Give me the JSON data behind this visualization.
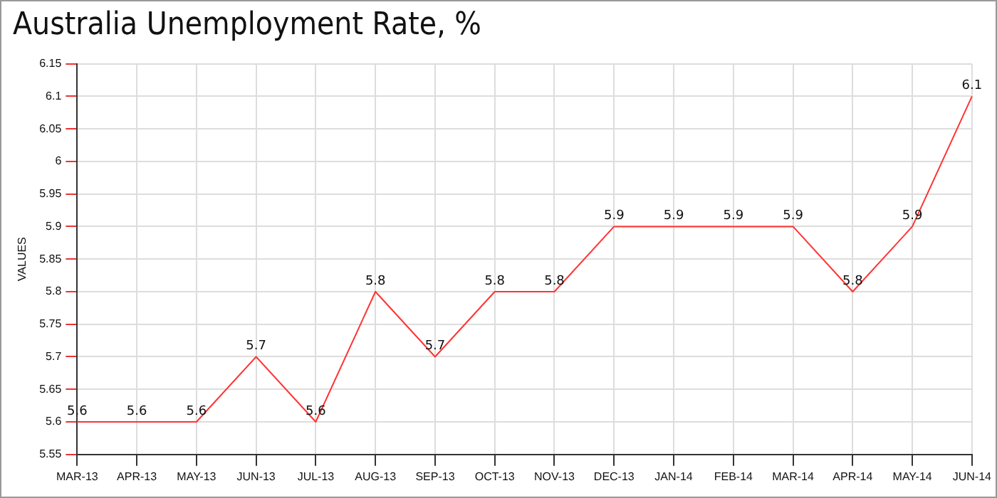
{
  "chart_data": {
    "type": "line",
    "title": "Australia Unemployment Rate, %",
    "ylabel": "VALUES",
    "categories": [
      "MAR-13",
      "APR-13",
      "MAY-13",
      "JUN-13",
      "JUL-13",
      "AUG-13",
      "SEP-13",
      "OCT-13",
      "NOV-13",
      "DEC-13",
      "JAN-14",
      "FEB-14",
      "MAR-14",
      "APR-14",
      "MAY-14",
      "JUN-14"
    ],
    "series": [
      {
        "color": "#ff3333",
        "values": [
          5.6,
          5.6,
          5.6,
          5.7,
          5.6,
          5.8,
          5.7,
          5.8,
          5.8,
          5.9,
          5.9,
          5.9,
          5.9,
          5.8,
          5.9,
          6.1
        ]
      }
    ],
    "ylim": [
      5.55,
      6.15
    ],
    "yticks": [
      5.55,
      5.6,
      5.65,
      5.7,
      5.75,
      5.8,
      5.85,
      5.9,
      5.95,
      6,
      6.05,
      6.1,
      6.15
    ],
    "grid": true,
    "line_style": "solid",
    "marker": "none",
    "data_labels": true,
    "legend": false
  }
}
